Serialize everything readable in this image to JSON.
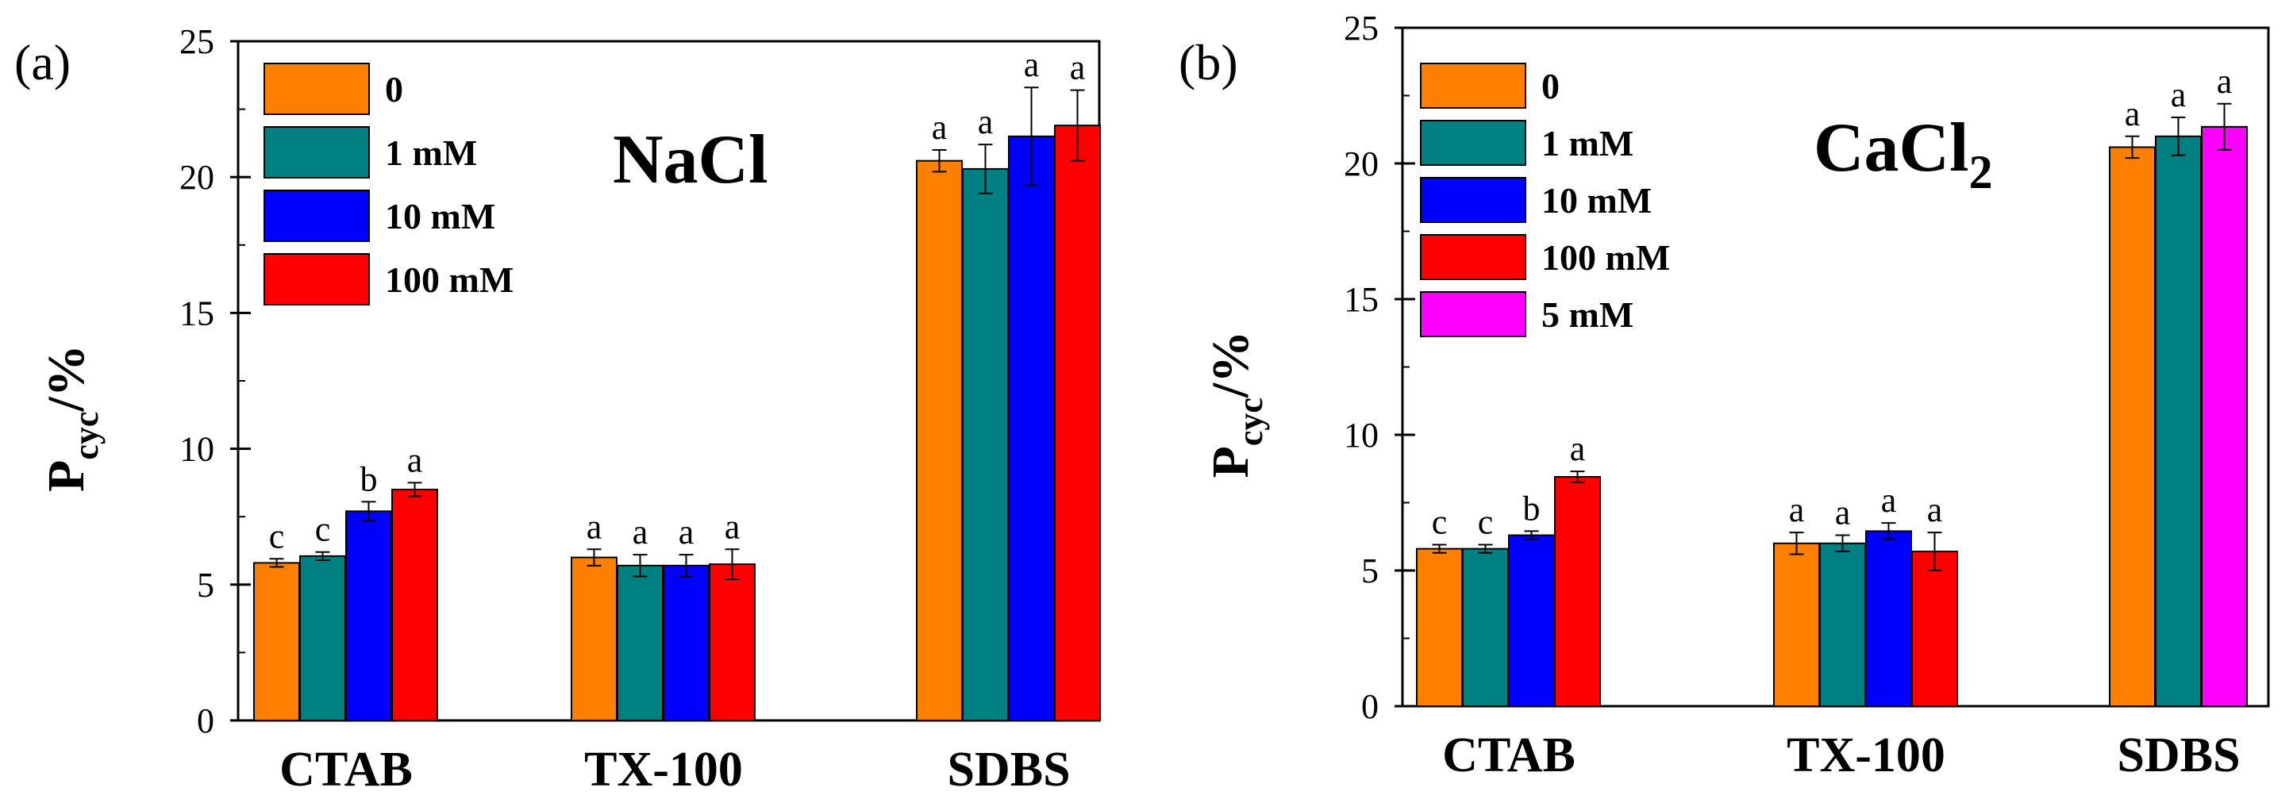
{
  "chart_data": [
    {
      "type": "bar",
      "panel_label": "(a)",
      "salt_label": "NaCl",
      "salt_sub": "",
      "ylabel": {
        "main": "P",
        "sub": "cyc",
        "unit": "/%"
      },
      "ylim": [
        0,
        25
      ],
      "yticks": [
        0,
        5,
        10,
        15,
        20,
        25
      ],
      "categories": [
        "CTAB",
        "TX-100",
        "SDBS"
      ],
      "legend_position": "top-left",
      "series": [
        {
          "name": "0",
          "color": "#ff8000",
          "values": [
            5.8,
            6.0,
            20.6
          ],
          "errors": [
            0.15,
            0.3,
            0.4
          ],
          "labels": [
            "c",
            "a",
            "a"
          ]
        },
        {
          "name": "1 mM",
          "color": "#008080",
          "values": [
            6.05,
            5.7,
            20.3
          ],
          "errors": [
            0.15,
            0.4,
            0.9
          ],
          "labels": [
            "c",
            "a",
            "a"
          ]
        },
        {
          "name": "10 mM",
          "color": "#0000ff",
          "values": [
            7.7,
            5.7,
            21.5
          ],
          "errors": [
            0.35,
            0.4,
            1.8
          ],
          "labels": [
            "b",
            "a",
            "a"
          ]
        },
        {
          "name": "100 mM",
          "color": "#ff0000",
          "values": [
            8.5,
            5.75,
            21.9
          ],
          "errors": [
            0.25,
            0.55,
            1.3
          ],
          "labels": [
            "a",
            "a",
            "a"
          ]
        }
      ]
    },
    {
      "type": "bar",
      "panel_label": "(b)",
      "salt_label": "CaCl",
      "salt_sub": "2",
      "ylabel": {
        "main": "P",
        "sub": "cyc",
        "unit": "/%"
      },
      "ylim": [
        0,
        25
      ],
      "yticks": [
        0,
        5,
        10,
        15,
        20,
        25
      ],
      "categories": [
        "CTAB",
        "TX-100",
        "SDBS"
      ],
      "legend_position": "top-left",
      "series": [
        {
          "name": "0",
          "color": "#ff8000",
          "values": [
            5.8,
            6.0,
            20.6
          ],
          "errors": [
            0.15,
            0.4,
            0.4
          ],
          "labels": [
            "c",
            "a",
            "a"
          ]
        },
        {
          "name": "1 mM",
          "color": "#008080",
          "values": [
            5.8,
            6.0,
            21.0
          ],
          "errors": [
            0.15,
            0.3,
            0.7
          ],
          "labels": [
            "c",
            "a",
            "a"
          ]
        },
        {
          "name": "10 mM",
          "color": "#0000ff",
          "values": [
            6.3,
            6.45,
            null
          ],
          "errors": [
            0.15,
            0.3,
            null
          ],
          "labels": [
            "b",
            "a",
            null
          ]
        },
        {
          "name": "100 mM",
          "color": "#ff0000",
          "values": [
            8.45,
            5.7,
            null
          ],
          "errors": [
            0.2,
            0.7,
            null
          ],
          "labels": [
            "a",
            "a",
            null
          ]
        },
        {
          "name": "5 mM",
          "color": "#ff00ff",
          "values": [
            null,
            null,
            21.35
          ],
          "errors": [
            null,
            null,
            0.85
          ],
          "labels": [
            null,
            null,
            "a"
          ]
        }
      ]
    }
  ]
}
